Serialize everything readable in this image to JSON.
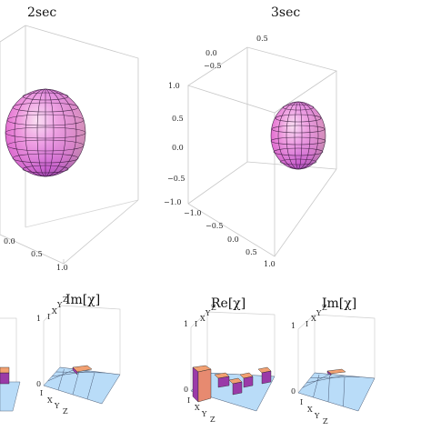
{
  "panels": {
    "left": {
      "title": "2sec"
    },
    "right": {
      "title": "3sec"
    }
  },
  "ticks": {
    "one": "1.0",
    "half": "0.5",
    "neg_half": "−0.5",
    "neg_one": "−1.0",
    "half_short": "0.5",
    "zero_short": "0.0",
    "right_top_05": "0.5",
    "right_top_m05": "−0.5",
    "right_left_10": "1.0",
    "right_left_05": "0.5",
    "right_left_00": "0.0",
    "right_left_m05": "−0.5",
    "right_left_m10": "−1.0",
    "right_bot_m10": "−1.0",
    "right_bot_m05": "−0.5",
    "right_bot_00": "0.0",
    "right_bot_05": "0.5",
    "right_bot_10": "1.0",
    "left_bot_00": "0.0",
    "left_bot_05": "0.5",
    "left_bot_10": "1.0"
  },
  "matrices": {
    "m1": {
      "title": "",
      "axis_top": "1",
      "axis_bottom": "0"
    },
    "m2": {
      "title": "Im[χ]",
      "axis_top": "1",
      "axis_bottom": "0",
      "x_labels": [
        "I",
        "X",
        "Y",
        "Z"
      ],
      "y_labels": [
        "I",
        "X",
        "Y",
        "Z"
      ]
    },
    "m3": {
      "title": "Re[χ]",
      "axis_top": "1",
      "axis_bottom": "0",
      "x_labels": [
        "I",
        "X",
        "Y",
        "Z"
      ],
      "y_labels": [
        "I",
        "X",
        "Y",
        "Z"
      ]
    },
    "m4": {
      "title": "Im[χ]",
      "axis_top": "1",
      "axis_bottom": "0",
      "x_labels": [
        "I",
        "X",
        "Y",
        "Z"
      ],
      "y_labels": [
        "I",
        "X",
        "Y",
        "Z"
      ]
    }
  },
  "colors": {
    "sphere_light": "#f1c6ea",
    "sphere_mid": "#d868dc",
    "sphere_dark": "#8b2fa4",
    "grid_plane": "#b9dcf8",
    "bar_orange": "#f2a071",
    "bar_purple": "#9a3aa8",
    "bar_pink": "#e3a4c8"
  }
}
